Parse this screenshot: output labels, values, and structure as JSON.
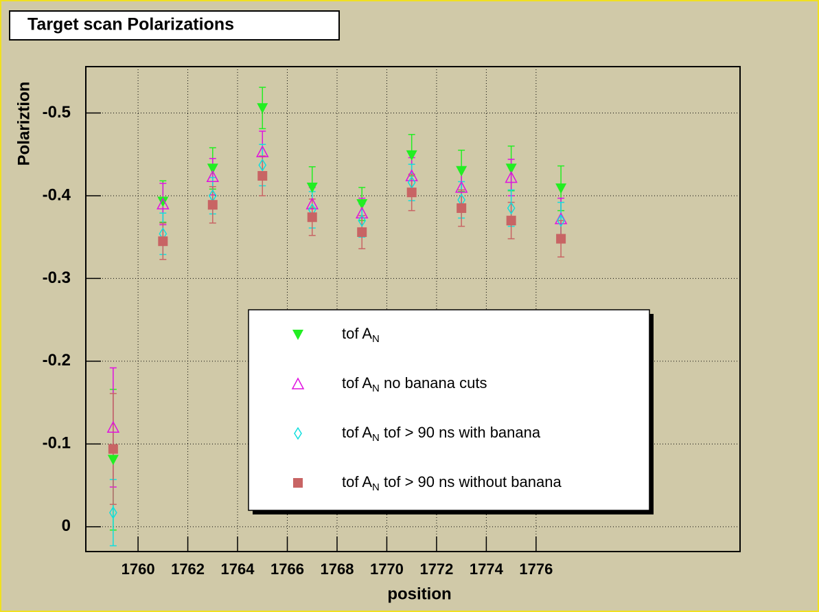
{
  "chart_data": {
    "type": "scatter",
    "title": "Target scan Polarizations",
    "x_label": "position",
    "y_label": "Polariztion",
    "xlim": [
      1757.9,
      1784.2
    ],
    "ylim": [
      0.03,
      -0.556
    ],
    "xticks": [
      1760,
      1762,
      1764,
      1766,
      1768,
      1770,
      1772,
      1774,
      1776
    ],
    "yticks": [
      0,
      -0.1,
      -0.2,
      -0.3,
      -0.4,
      -0.5
    ],
    "grid": true,
    "x": [
      1759,
      1761,
      1763,
      1765,
      1767,
      1769,
      1771,
      1773,
      1775,
      1777
    ],
    "series": [
      {
        "label": {
          "main": "tof A",
          "sub": "N",
          "suffix": ""
        },
        "color": "#22ee22",
        "marker": "triangle-down",
        "values": [
          -0.081,
          -0.393,
          -0.433,
          -0.506,
          -0.41,
          -0.39,
          -0.449,
          -0.43,
          -0.433,
          -0.409
        ],
        "errors": [
          0.085,
          0.025,
          0.025,
          0.025,
          0.025,
          0.02,
          0.025,
          0.025,
          0.027,
          0.027
        ]
      },
      {
        "label": {
          "main": "tof A",
          "sub": "N",
          "suffix": " no banana cuts"
        },
        "color": "#e010e0",
        "marker": "triangle-open",
        "values": [
          -0.12,
          -0.39,
          -0.423,
          -0.453,
          -0.39,
          -0.379,
          -0.424,
          -0.41,
          -0.422,
          -0.372
        ],
        "errors": [
          0.072,
          0.025,
          0.022,
          0.025,
          0.02,
          0.018,
          0.022,
          0.022,
          0.022,
          0.025
        ]
      },
      {
        "label": {
          "main": "tof A",
          "sub": "N",
          "suffix": " tof > 90 ns with banana"
        },
        "color": "#10dede",
        "marker": "diamond-open",
        "values": [
          -0.017,
          -0.354,
          -0.4,
          -0.437,
          -0.383,
          -0.37,
          -0.416,
          -0.395,
          -0.385,
          -0.37
        ],
        "errors": [
          0.04,
          0.025,
          0.022,
          0.025,
          0.022,
          0.02,
          0.022,
          0.022,
          0.022,
          0.022
        ]
      },
      {
        "label": {
          "main": "tof A",
          "sub": "N",
          "suffix": " tof > 90 ns without banana"
        },
        "color": "#c86464",
        "marker": "square",
        "values": [
          -0.094,
          -0.345,
          -0.389,
          -0.424,
          -0.374,
          -0.356,
          -0.404,
          -0.385,
          -0.37,
          -0.348
        ],
        "errors": [
          0.067,
          0.022,
          0.022,
          0.024,
          0.022,
          0.02,
          0.022,
          0.022,
          0.022,
          0.022
        ]
      }
    ]
  }
}
